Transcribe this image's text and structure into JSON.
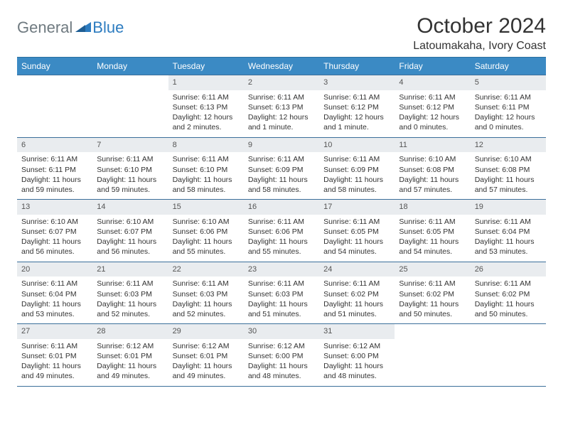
{
  "logo": {
    "part1": "General",
    "part2": "Blue"
  },
  "title": "October 2024",
  "location": "Latoumakaha, Ivory Coast",
  "colors": {
    "header_bg": "#3b8ac4",
    "header_text": "#ffffff",
    "rule": "#3b6f9a",
    "daybar": "#e9ecef",
    "logo_gray": "#6f7a80",
    "logo_blue": "#2d7cc0"
  },
  "day_headers": [
    "Sunday",
    "Monday",
    "Tuesday",
    "Wednesday",
    "Thursday",
    "Friday",
    "Saturday"
  ],
  "weeks": [
    [
      {
        "empty": true
      },
      {
        "empty": true
      },
      {
        "day": "1",
        "sunrise": "Sunrise: 6:11 AM",
        "sunset": "Sunset: 6:13 PM",
        "daylight": "Daylight: 12 hours and 2 minutes."
      },
      {
        "day": "2",
        "sunrise": "Sunrise: 6:11 AM",
        "sunset": "Sunset: 6:13 PM",
        "daylight": "Daylight: 12 hours and 1 minute."
      },
      {
        "day": "3",
        "sunrise": "Sunrise: 6:11 AM",
        "sunset": "Sunset: 6:12 PM",
        "daylight": "Daylight: 12 hours and 1 minute."
      },
      {
        "day": "4",
        "sunrise": "Sunrise: 6:11 AM",
        "sunset": "Sunset: 6:12 PM",
        "daylight": "Daylight: 12 hours and 0 minutes."
      },
      {
        "day": "5",
        "sunrise": "Sunrise: 6:11 AM",
        "sunset": "Sunset: 6:11 PM",
        "daylight": "Daylight: 12 hours and 0 minutes."
      }
    ],
    [
      {
        "day": "6",
        "sunrise": "Sunrise: 6:11 AM",
        "sunset": "Sunset: 6:11 PM",
        "daylight": "Daylight: 11 hours and 59 minutes."
      },
      {
        "day": "7",
        "sunrise": "Sunrise: 6:11 AM",
        "sunset": "Sunset: 6:10 PM",
        "daylight": "Daylight: 11 hours and 59 minutes."
      },
      {
        "day": "8",
        "sunrise": "Sunrise: 6:11 AM",
        "sunset": "Sunset: 6:10 PM",
        "daylight": "Daylight: 11 hours and 58 minutes."
      },
      {
        "day": "9",
        "sunrise": "Sunrise: 6:11 AM",
        "sunset": "Sunset: 6:09 PM",
        "daylight": "Daylight: 11 hours and 58 minutes."
      },
      {
        "day": "10",
        "sunrise": "Sunrise: 6:11 AM",
        "sunset": "Sunset: 6:09 PM",
        "daylight": "Daylight: 11 hours and 58 minutes."
      },
      {
        "day": "11",
        "sunrise": "Sunrise: 6:10 AM",
        "sunset": "Sunset: 6:08 PM",
        "daylight": "Daylight: 11 hours and 57 minutes."
      },
      {
        "day": "12",
        "sunrise": "Sunrise: 6:10 AM",
        "sunset": "Sunset: 6:08 PM",
        "daylight": "Daylight: 11 hours and 57 minutes."
      }
    ],
    [
      {
        "day": "13",
        "sunrise": "Sunrise: 6:10 AM",
        "sunset": "Sunset: 6:07 PM",
        "daylight": "Daylight: 11 hours and 56 minutes."
      },
      {
        "day": "14",
        "sunrise": "Sunrise: 6:10 AM",
        "sunset": "Sunset: 6:07 PM",
        "daylight": "Daylight: 11 hours and 56 minutes."
      },
      {
        "day": "15",
        "sunrise": "Sunrise: 6:10 AM",
        "sunset": "Sunset: 6:06 PM",
        "daylight": "Daylight: 11 hours and 55 minutes."
      },
      {
        "day": "16",
        "sunrise": "Sunrise: 6:11 AM",
        "sunset": "Sunset: 6:06 PM",
        "daylight": "Daylight: 11 hours and 55 minutes."
      },
      {
        "day": "17",
        "sunrise": "Sunrise: 6:11 AM",
        "sunset": "Sunset: 6:05 PM",
        "daylight": "Daylight: 11 hours and 54 minutes."
      },
      {
        "day": "18",
        "sunrise": "Sunrise: 6:11 AM",
        "sunset": "Sunset: 6:05 PM",
        "daylight": "Daylight: 11 hours and 54 minutes."
      },
      {
        "day": "19",
        "sunrise": "Sunrise: 6:11 AM",
        "sunset": "Sunset: 6:04 PM",
        "daylight": "Daylight: 11 hours and 53 minutes."
      }
    ],
    [
      {
        "day": "20",
        "sunrise": "Sunrise: 6:11 AM",
        "sunset": "Sunset: 6:04 PM",
        "daylight": "Daylight: 11 hours and 53 minutes."
      },
      {
        "day": "21",
        "sunrise": "Sunrise: 6:11 AM",
        "sunset": "Sunset: 6:03 PM",
        "daylight": "Daylight: 11 hours and 52 minutes."
      },
      {
        "day": "22",
        "sunrise": "Sunrise: 6:11 AM",
        "sunset": "Sunset: 6:03 PM",
        "daylight": "Daylight: 11 hours and 52 minutes."
      },
      {
        "day": "23",
        "sunrise": "Sunrise: 6:11 AM",
        "sunset": "Sunset: 6:03 PM",
        "daylight": "Daylight: 11 hours and 51 minutes."
      },
      {
        "day": "24",
        "sunrise": "Sunrise: 6:11 AM",
        "sunset": "Sunset: 6:02 PM",
        "daylight": "Daylight: 11 hours and 51 minutes."
      },
      {
        "day": "25",
        "sunrise": "Sunrise: 6:11 AM",
        "sunset": "Sunset: 6:02 PM",
        "daylight": "Daylight: 11 hours and 50 minutes."
      },
      {
        "day": "26",
        "sunrise": "Sunrise: 6:11 AM",
        "sunset": "Sunset: 6:02 PM",
        "daylight": "Daylight: 11 hours and 50 minutes."
      }
    ],
    [
      {
        "day": "27",
        "sunrise": "Sunrise: 6:11 AM",
        "sunset": "Sunset: 6:01 PM",
        "daylight": "Daylight: 11 hours and 49 minutes."
      },
      {
        "day": "28",
        "sunrise": "Sunrise: 6:12 AM",
        "sunset": "Sunset: 6:01 PM",
        "daylight": "Daylight: 11 hours and 49 minutes."
      },
      {
        "day": "29",
        "sunrise": "Sunrise: 6:12 AM",
        "sunset": "Sunset: 6:01 PM",
        "daylight": "Daylight: 11 hours and 49 minutes."
      },
      {
        "day": "30",
        "sunrise": "Sunrise: 6:12 AM",
        "sunset": "Sunset: 6:00 PM",
        "daylight": "Daylight: 11 hours and 48 minutes."
      },
      {
        "day": "31",
        "sunrise": "Sunrise: 6:12 AM",
        "sunset": "Sunset: 6:00 PM",
        "daylight": "Daylight: 11 hours and 48 minutes."
      },
      {
        "empty": true
      },
      {
        "empty": true
      }
    ]
  ]
}
